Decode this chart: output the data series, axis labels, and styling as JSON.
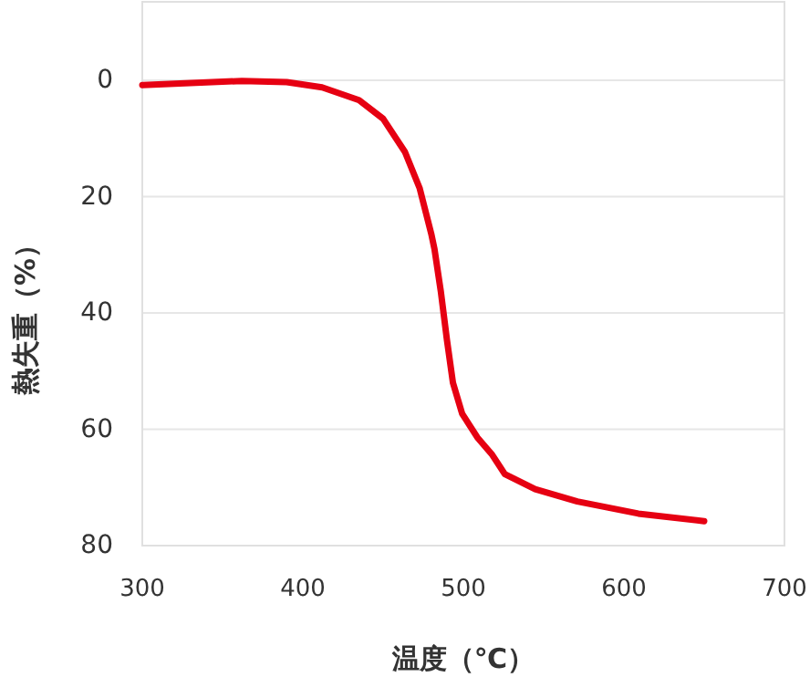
{
  "chart_data": {
    "type": "line",
    "xlabel": "温度（℃）",
    "ylabel": "熱失重（%）",
    "xlim": [
      300,
      700
    ],
    "xticks": [
      300,
      400,
      500,
      600,
      700
    ],
    "ylim": [
      80,
      -13.5
    ],
    "yticks": [
      0,
      20,
      40,
      60,
      80
    ],
    "grid": "y",
    "marker": "none",
    "line_style": "solid",
    "series": [
      {
        "color": "#e60012",
        "x": [
          300,
          362,
          390,
          412,
          435,
          450,
          463.6,
          472.7,
          480,
          482,
          486,
          489.8,
          493.5,
          499.2,
          508.7,
          518,
          525.8,
          544.7,
          571,
          609,
          650
        ],
        "values": [
          0.8,
          0.1,
          0.3,
          1.2,
          3.4,
          6.6,
          12.3,
          18.5,
          26.4,
          29,
          36.4,
          44.7,
          52,
          57.3,
          61.4,
          64.4,
          67.7,
          70.3,
          72.4,
          74.5,
          75.8
        ]
      }
    ]
  }
}
